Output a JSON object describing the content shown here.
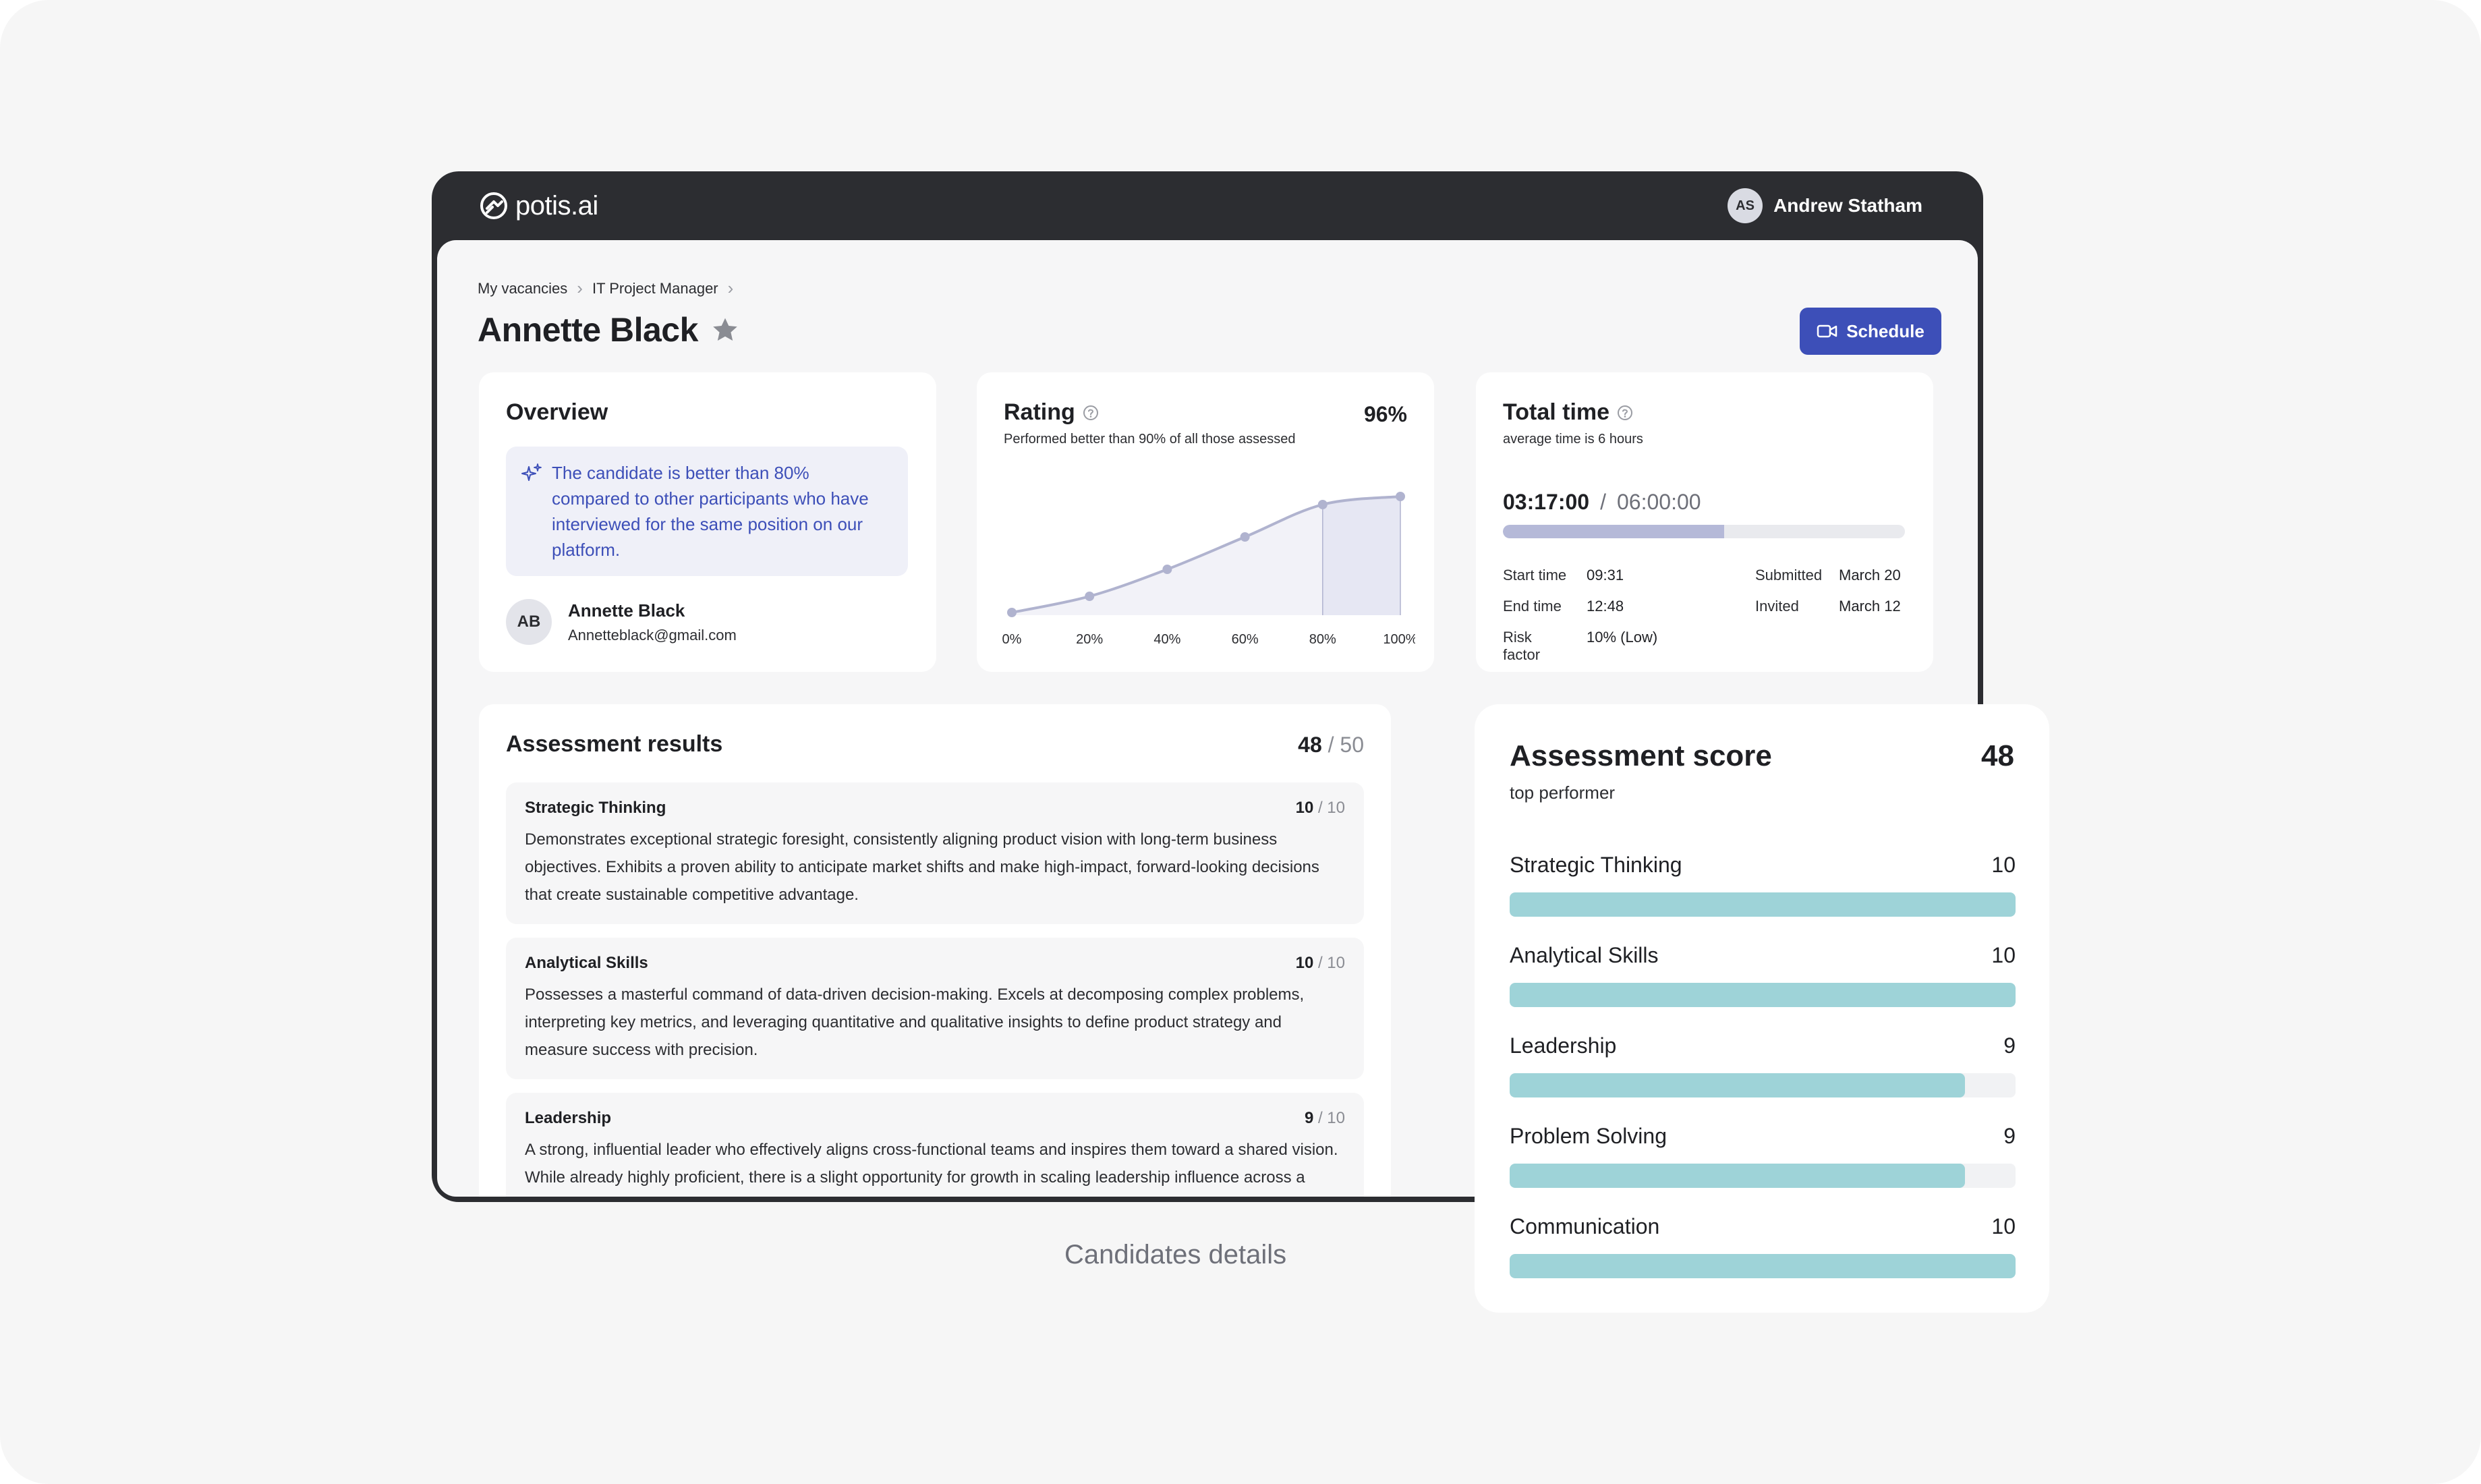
{
  "app": {
    "brand": "potis.ai",
    "user": {
      "initials": "AS",
      "name": "Andrew Statham"
    }
  },
  "breadcrumb": [
    "My vacancies",
    "IT Project Manager"
  ],
  "page": {
    "title": "Annette Black",
    "schedule_label": "Schedule"
  },
  "overview": {
    "title": "Overview",
    "ai_note": "The candidate is better than 80% compared to other participants who have interviewed for the same position on our platform.",
    "candidate": {
      "initials": "AB",
      "name": "Annette Black",
      "email": "Annetteblack@gmail.com"
    }
  },
  "rating": {
    "title": "Rating",
    "percent": "96%",
    "subtitle": "Performed better than 90% of all those assessed"
  },
  "total_time": {
    "title": "Total time",
    "subtitle": "average time is 6 hours",
    "elapsed": "03:17:00",
    "separator": "/",
    "total": "06:00:00",
    "progress": 0.55,
    "meta": {
      "start_label": "Start time",
      "start_value": "09:31",
      "end_label": "End time",
      "end_value": "12:48",
      "risk_label": "Risk factor",
      "risk_value": "10% (Low)",
      "submitted_label": "Submitted",
      "submitted_value": "March 20",
      "invited_label": "Invited",
      "invited_value": "March 12"
    }
  },
  "results": {
    "title": "Assessment results",
    "score": "48",
    "score_of": "/ 50",
    "items": [
      {
        "name": "Strategic Thinking",
        "score": "10",
        "of": "/ 10",
        "description": "Demonstrates exceptional strategic foresight, consistently aligning product vision with long-term business objectives. Exhibits a proven ability to anticipate market shifts and make high-impact, forward-looking decisions that create sustainable competitive advantage."
      },
      {
        "name": "Analytical Skills",
        "score": "10",
        "of": "/ 10",
        "description": "Possesses a masterful command of data-driven decision-making. Excels at decomposing complex problems, interpreting key metrics, and leveraging quantitative and qualitative insights to define product strategy and measure success with precision."
      },
      {
        "name": "Leadership",
        "score": "9",
        "of": "/ 10",
        "description": "A strong, influential leader who effectively aligns cross-functional teams and inspires them toward a shared vision. While already highly proficient, there is a slight opportunity for growth in scaling leadership influence across a"
      }
    ]
  },
  "caption": "Candidates details",
  "score_card": {
    "title": "Assessment score",
    "total": "48",
    "subtitle": "top performer",
    "max": 10,
    "rows": [
      {
        "name": "Strategic Thinking",
        "value": "10",
        "fraction": 1.0
      },
      {
        "name": "Analytical Skills",
        "value": "10",
        "fraction": 1.0
      },
      {
        "name": "Leadership",
        "value": "9",
        "fraction": 0.9
      },
      {
        "name": "Problem Solving",
        "value": "9",
        "fraction": 0.9
      },
      {
        "name": "Communication",
        "value": "10",
        "fraction": 1.0
      }
    ]
  },
  "chart_data": {
    "type": "area",
    "title": "",
    "xlabel": "",
    "ylabel": "",
    "x": [
      "0%",
      "20%",
      "40%",
      "60%",
      "80%",
      "100%"
    ],
    "values": [
      2,
      14,
      34,
      58,
      82,
      88
    ],
    "ylim": [
      0,
      100
    ],
    "highlight_range": [
      "80%",
      "100%"
    ],
    "grid": false,
    "colors": {
      "line": "#b0b3cf",
      "fill": "#f2f2f8",
      "highlight": "#e6e7f3",
      "point": "#b0b3cf"
    }
  },
  "colors": {
    "accent": "#3d4fb8",
    "bar": "#9ed3d8",
    "header": "#2c2d31"
  }
}
